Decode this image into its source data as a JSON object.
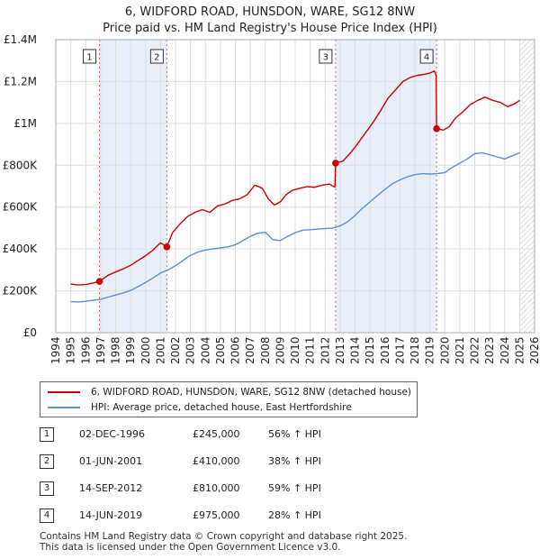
{
  "chart_data": {
    "type": "line",
    "title": "6, WIDFORD ROAD, HUNSDON, WARE, SG12 8NW",
    "subtitle": "Price paid vs. HM Land Registry's House Price Index (HPI)",
    "xlabel": "",
    "ylabel": "",
    "xlim": [
      1994,
      2026
    ],
    "ylim": [
      0,
      1400000
    ],
    "x_ticks": [
      "1994",
      "1995",
      "1996",
      "1997",
      "1998",
      "1999",
      "2000",
      "2001",
      "2002",
      "2003",
      "2004",
      "2005",
      "2006",
      "2007",
      "2008",
      "2009",
      "2010",
      "2011",
      "2012",
      "2013",
      "2014",
      "2015",
      "2016",
      "2017",
      "2018",
      "2019",
      "2020",
      "2021",
      "2022",
      "2023",
      "2024",
      "2025",
      "2026"
    ],
    "y_ticks": [
      {
        "value": 0,
        "label": "£0"
      },
      {
        "value": 200000,
        "label": "£200K"
      },
      {
        "value": 400000,
        "label": "£400K"
      },
      {
        "value": 600000,
        "label": "£600K"
      },
      {
        "value": 800000,
        "label": "£800K"
      },
      {
        "value": 1000000,
        "label": "£1M"
      },
      {
        "value": 1200000,
        "label": "£1.2M"
      },
      {
        "value": 1400000,
        "label": "£1.4M"
      }
    ],
    "grid": true,
    "shaded_periods": [
      [
        1996.92,
        2001.42
      ],
      [
        2012.7,
        2019.45
      ]
    ],
    "hatched_from": 2025.0,
    "series": [
      {
        "name": "6, WIDFORD ROAD, HUNSDON, WARE, SG12 8NW (detached house)",
        "color": "#cc0000",
        "x": [
          1995.0,
          1995.5,
          1996.0,
          1996.5,
          1996.92,
          1997.5,
          1998.0,
          1998.5,
          1999.0,
          1999.5,
          2000.0,
          2000.5,
          2001.0,
          2001.42,
          2001.8,
          2002.3,
          2002.8,
          2003.3,
          2003.8,
          2004.3,
          2004.8,
          2005.3,
          2005.8,
          2006.3,
          2006.8,
          2007.3,
          2007.8,
          2008.2,
          2008.6,
          2009.0,
          2009.4,
          2009.8,
          2010.3,
          2010.8,
          2011.3,
          2011.8,
          2012.3,
          2012.65,
          2012.7,
          2013.2,
          2013.7,
          2014.2,
          2014.7,
          2015.2,
          2015.7,
          2016.2,
          2016.7,
          2017.2,
          2017.7,
          2018.2,
          2018.7,
          2019.0,
          2019.3,
          2019.42,
          2019.45,
          2019.9,
          2020.3,
          2020.7,
          2021.2,
          2021.7,
          2022.2,
          2022.7,
          2023.2,
          2023.7,
          2024.2,
          2024.7,
          2025.0
        ],
        "values": [
          232000,
          228000,
          230000,
          238000,
          245000,
          275000,
          290000,
          305000,
          322000,
          345000,
          368000,
          395000,
          430000,
          410000,
          478000,
          520000,
          555000,
          575000,
          588000,
          575000,
          605000,
          615000,
          632000,
          640000,
          660000,
          705000,
          690000,
          640000,
          610000,
          625000,
          660000,
          680000,
          690000,
          698000,
          695000,
          705000,
          710000,
          695000,
          810000,
          820000,
          860000,
          905000,
          955000,
          1005000,
          1060000,
          1120000,
          1160000,
          1200000,
          1220000,
          1230000,
          1235000,
          1240000,
          1250000,
          1230000,
          975000,
          968000,
          985000,
          1025000,
          1055000,
          1090000,
          1110000,
          1125000,
          1110000,
          1100000,
          1080000,
          1095000,
          1110000
        ]
      },
      {
        "name": "HPI: Average price, detached house, East Hertfordshire",
        "color": "#5b8fcf",
        "x": [
          1995.0,
          1995.5,
          1996.0,
          1996.5,
          1997.0,
          1997.5,
          1998.0,
          1998.5,
          1999.0,
          1999.5,
          2000.0,
          2000.5,
          2001.0,
          2001.5,
          2002.0,
          2002.5,
          2003.0,
          2003.5,
          2004.0,
          2004.5,
          2005.0,
          2005.5,
          2006.0,
          2006.5,
          2007.0,
          2007.5,
          2008.0,
          2008.5,
          2009.0,
          2009.5,
          2010.0,
          2010.5,
          2011.0,
          2011.5,
          2012.0,
          2012.5,
          2013.0,
          2013.5,
          2014.0,
          2014.5,
          2015.0,
          2015.5,
          2016.0,
          2016.5,
          2017.0,
          2017.5,
          2018.0,
          2018.5,
          2019.0,
          2019.5,
          2020.0,
          2020.5,
          2021.0,
          2021.5,
          2022.0,
          2022.5,
          2023.0,
          2023.5,
          2024.0,
          2024.5,
          2025.0
        ],
        "values": [
          148000,
          147000,
          150000,
          155000,
          160000,
          170000,
          180000,
          190000,
          202000,
          220000,
          240000,
          262000,
          285000,
          300000,
          320000,
          345000,
          370000,
          385000,
          395000,
          400000,
          405000,
          410000,
          420000,
          440000,
          460000,
          475000,
          480000,
          445000,
          440000,
          460000,
          478000,
          490000,
          492000,
          495000,
          498000,
          500000,
          510000,
          530000,
          560000,
          595000,
          625000,
          655000,
          685000,
          712000,
          730000,
          745000,
          755000,
          760000,
          758000,
          760000,
          765000,
          790000,
          810000,
          830000,
          855000,
          860000,
          850000,
          840000,
          830000,
          845000,
          860000
        ]
      }
    ],
    "sales": [
      {
        "n": "1",
        "x": 1996.92,
        "price": 245000
      },
      {
        "n": "2",
        "x": 2001.42,
        "price": 410000
      },
      {
        "n": "3",
        "x": 2012.7,
        "price": 810000
      },
      {
        "n": "4",
        "x": 2019.45,
        "price": 975000
      }
    ]
  },
  "legend": {
    "property_label": "6, WIDFORD ROAD, HUNSDON, WARE, SG12 8NW (detached house)",
    "hpi_label": "HPI: Average price, detached house, East Hertfordshire",
    "property_color": "#cc0000",
    "hpi_color": "#5b8fcf"
  },
  "sales_table": [
    {
      "n": "1",
      "date": "02-DEC-1996",
      "price": "£245,000",
      "hpi": "56% ↑ HPI"
    },
    {
      "n": "2",
      "date": "01-JUN-2001",
      "price": "£410,000",
      "hpi": "38% ↑ HPI"
    },
    {
      "n": "3",
      "date": "14-SEP-2012",
      "price": "£810,000",
      "hpi": "59% ↑ HPI"
    },
    {
      "n": "4",
      "date": "14-JUN-2019",
      "price": "£975,000",
      "hpi": "28% ↑ HPI"
    }
  ],
  "footer": {
    "line1": "Contains HM Land Registry data © Crown copyright and database right 2025.",
    "line2": "This data is licensed under the Open Government Licence v3.0."
  }
}
